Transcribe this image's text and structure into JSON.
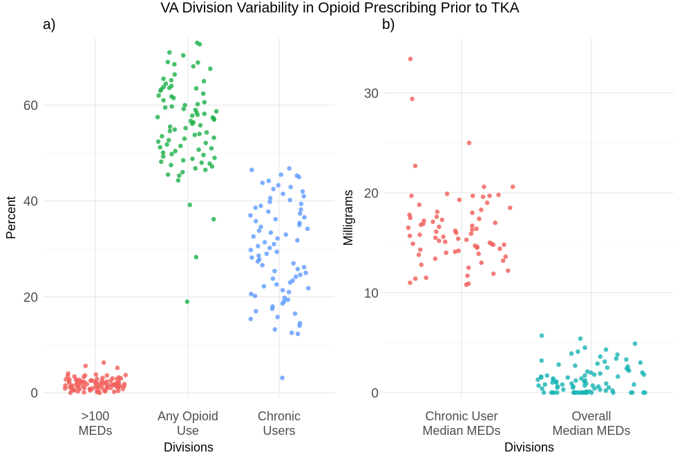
{
  "title": "VA Division Variability in Opioid Prescribing Prior to TKA",
  "chart_data": [
    {
      "panel_label": "a)",
      "type": "scatter",
      "jitter": true,
      "xlabel": "Divisions",
      "ylabel": "Percent",
      "ylim": [
        -1,
        74
      ],
      "yticks": [
        0,
        20,
        40,
        60
      ],
      "grid": true,
      "legend": "none",
      "categories": [
        {
          "label": [
            ">100",
            "MEDs"
          ],
          "color": "#F0605C"
        },
        {
          "label": [
            "Any Opioid",
            "Use"
          ],
          "color": "#22B24C"
        },
        {
          "label": [
            "Chronic",
            "Users"
          ],
          "color": "#619CFF"
        }
      ],
      "series": [
        {
          "category": 0,
          "values": [
            6.3,
            5.6,
            5.2,
            4.0,
            3.8,
            3.7,
            3.6,
            3.6,
            3.5,
            3.4,
            3.3,
            3.2,
            3.1,
            3.0,
            3.0,
            2.9,
            2.9,
            2.8,
            2.8,
            2.7,
            2.7,
            2.6,
            2.6,
            2.5,
            2.5,
            2.5,
            2.4,
            2.4,
            2.3,
            2.3,
            2.3,
            2.2,
            2.2,
            2.2,
            2.1,
            2.1,
            2.1,
            2.0,
            2.0,
            2.0,
            1.9,
            1.9,
            1.9,
            1.8,
            1.8,
            1.8,
            1.7,
            1.7,
            1.7,
            1.6,
            1.6,
            1.6,
            1.5,
            1.5,
            1.5,
            1.4,
            1.4,
            1.4,
            1.3,
            1.3,
            1.3,
            1.2,
            1.2,
            1.2,
            1.1,
            1.1,
            1.1,
            1.0,
            1.0,
            1.0,
            0.9,
            0.9,
            0.9,
            0.8,
            0.8,
            0.8,
            0.7,
            0.7,
            0.6,
            0.6,
            0.5,
            0.5,
            0.4,
            0.4,
            0.3,
            0.3,
            0.2,
            0.2,
            0.1,
            0.1,
            0.0,
            0.0
          ]
        },
        {
          "category": 1,
          "values": [
            73.0,
            72.7,
            71.0,
            70.4,
            69.0,
            68.9,
            68.5,
            68.1,
            67.6,
            66.4,
            65.5,
            65.2,
            65.0,
            64.5,
            64.0,
            63.8,
            63.6,
            63.5,
            63.3,
            63.0,
            62.4,
            62.0,
            61.8,
            61.5,
            61.0,
            60.6,
            60.2,
            60.0,
            59.7,
            59.5,
            59.2,
            59.0,
            58.7,
            58.5,
            58.2,
            58.0,
            57.8,
            57.5,
            57.4,
            57.2,
            57.0,
            56.7,
            56.4,
            56.1,
            55.8,
            55.5,
            55.2,
            54.9,
            54.6,
            54.3,
            54.0,
            53.8,
            53.5,
            53.2,
            53.0,
            52.7,
            52.4,
            52.1,
            51.8,
            51.5,
            51.2,
            51.0,
            50.7,
            50.4,
            50.1,
            49.8,
            49.6,
            49.3,
            49.0,
            48.8,
            48.5,
            48.2,
            48.0,
            47.8,
            47.5,
            47.2,
            46.8,
            46.5,
            46.0,
            45.5,
            45.3,
            44.3,
            39.2,
            36.2,
            28.3,
            19.0
          ]
        },
        {
          "category": 2,
          "values": [
            46.8,
            46.5,
            45.5,
            45.3,
            45.0,
            44.2,
            43.8,
            43.3,
            42.9,
            42.5,
            42.0,
            41.5,
            41.0,
            40.6,
            40.2,
            39.8,
            39.4,
            39.0,
            38.6,
            38.2,
            37.8,
            37.4,
            37.0,
            36.6,
            36.2,
            35.8,
            35.4,
            35.0,
            34.6,
            34.2,
            33.8,
            33.4,
            33.0,
            32.6,
            32.2,
            31.8,
            31.4,
            31.0,
            30.6,
            30.2,
            29.8,
            29.4,
            29.0,
            28.6,
            28.2,
            27.8,
            27.4,
            27.0,
            26.6,
            26.2,
            25.8,
            25.4,
            25.0,
            24.6,
            24.2,
            23.8,
            23.4,
            23.0,
            22.6,
            22.2,
            21.8,
            21.4,
            21.0,
            20.6,
            20.2,
            19.8,
            19.4,
            19.0,
            18.6,
            18.0,
            17.5,
            17.0,
            16.5,
            15.8,
            15.4,
            14.5,
            14.0,
            13.2,
            12.5,
            12.3,
            3.1
          ]
        }
      ]
    },
    {
      "panel_label": "b)",
      "type": "scatter",
      "jitter": true,
      "xlabel": "Divisions",
      "ylabel": "Milligrams",
      "ylim": [
        -0.5,
        35.5
      ],
      "yticks": [
        0,
        10,
        20,
        30
      ],
      "grid": true,
      "legend": "none",
      "categories": [
        {
          "label": [
            "Chronic User",
            "Median MEDs"
          ],
          "color": "#F0605C"
        },
        {
          "label": [
            "Overall",
            "Median MEDs"
          ],
          "color": "#1DB5B5"
        }
      ],
      "series": [
        {
          "category": 0,
          "values": [
            33.4,
            29.4,
            25.0,
            22.7,
            20.6,
            20.6,
            19.9,
            19.8,
            19.7,
            19.7,
            19.7,
            19.6,
            19.3,
            19.0,
            18.8,
            18.5,
            18.3,
            18.1,
            18.0,
            17.8,
            17.6,
            17.5,
            17.4,
            17.3,
            17.2,
            17.1,
            17.0,
            16.9,
            16.8,
            16.7,
            16.6,
            16.5,
            16.4,
            16.3,
            16.2,
            16.1,
            16.0,
            15.9,
            15.8,
            15.7,
            15.6,
            15.5,
            15.4,
            15.3,
            15.2,
            15.1,
            15.0,
            14.9,
            14.9,
            14.8,
            14.8,
            14.7,
            14.6,
            14.5,
            14.4,
            14.3,
            14.2,
            14.1,
            14.0,
            13.9,
            13.8,
            13.6,
            13.4,
            13.2,
            13.0,
            12.8,
            12.5,
            12.2,
            11.9,
            11.7,
            11.5,
            11.4,
            11.0,
            10.9,
            10.8
          ]
        },
        {
          "category": 1,
          "values": [
            5.7,
            5.4,
            4.9,
            4.5,
            4.3,
            4.1,
            3.9,
            3.8,
            3.6,
            3.4,
            3.3,
            3.2,
            3.1,
            3.0,
            2.9,
            2.8,
            2.7,
            2.6,
            2.5,
            2.4,
            2.3,
            2.2,
            2.1,
            2.0,
            2.0,
            1.9,
            1.8,
            1.8,
            1.7,
            1.7,
            1.6,
            1.6,
            1.5,
            1.5,
            1.4,
            1.4,
            1.3,
            1.3,
            1.2,
            1.2,
            1.1,
            1.1,
            1.0,
            1.0,
            0.9,
            0.9,
            0.9,
            0.8,
            0.8,
            0.8,
            0.7,
            0.7,
            0.7,
            0.6,
            0.6,
            0.6,
            0.5,
            0.5,
            0.5,
            0.4,
            0.4,
            0.3,
            0.3,
            0.2,
            0.2,
            0.1,
            0.1,
            0.0,
            0.0,
            0.0,
            0.0,
            0.0,
            0.0,
            0.0,
            0.0,
            0.0,
            0.0,
            0.0,
            0.0,
            0.0,
            0.0,
            0.0,
            0.0,
            0.0,
            0.0,
            0.0,
            0.0,
            0.0,
            0.0,
            0.0
          ]
        }
      ]
    }
  ]
}
